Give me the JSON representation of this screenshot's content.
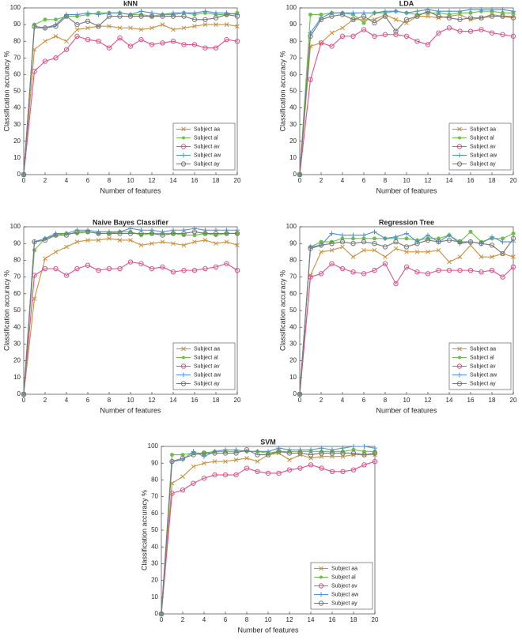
{
  "chart_data": [
    {
      "type": "line",
      "title": "kNN",
      "xlabel": "Number of features",
      "ylabel": "Classification accuracy %",
      "x": [
        0,
        1,
        2,
        3,
        4,
        5,
        6,
        7,
        8,
        9,
        10,
        11,
        12,
        13,
        14,
        15,
        16,
        17,
        18,
        19,
        20
      ],
      "xlim": [
        0,
        20
      ],
      "ylim": [
        0,
        100
      ],
      "xticks": [
        0,
        2,
        4,
        6,
        8,
        10,
        12,
        14,
        16,
        18,
        20
      ],
      "yticks": [
        0,
        10,
        20,
        30,
        40,
        50,
        60,
        70,
        80,
        90,
        100
      ],
      "legend": "lower right",
      "series": [
        {
          "name": "Subject aa",
          "color": "#c99040",
          "values": [
            0,
            75,
            80,
            83,
            80,
            87,
            88,
            89,
            89,
            88,
            88,
            87,
            88,
            90,
            87,
            88,
            89,
            90,
            90,
            90,
            89
          ]
        },
        {
          "name": "Subject al",
          "color": "#6cc04a",
          "values": [
            0,
            90,
            93,
            93,
            95,
            95,
            96,
            97,
            97,
            97,
            96,
            96,
            95,
            96,
            96,
            97,
            96,
            97,
            96,
            96,
            97
          ]
        },
        {
          "name": "Subject av",
          "color": "#e0508a",
          "values": [
            0,
            62,
            68,
            70,
            75,
            83,
            81,
            80,
            76,
            82,
            77,
            81,
            78,
            79,
            80,
            78,
            78,
            76,
            76,
            81,
            80
          ]
        },
        {
          "name": "Subject aw",
          "color": "#4a90d9",
          "values": [
            0,
            88,
            88,
            90,
            96,
            96,
            97,
            96,
            97,
            97,
            96,
            98,
            97,
            96,
            97,
            97,
            97,
            98,
            97,
            97,
            96
          ]
        },
        {
          "name": "Subject ay",
          "color": "#777777",
          "values": [
            0,
            89,
            88,
            89,
            95,
            90,
            92,
            89,
            95,
            95,
            95,
            95,
            95,
            95,
            95,
            95,
            93,
            93,
            94,
            96,
            95
          ]
        }
      ]
    },
    {
      "type": "line",
      "title": "LDA",
      "xlabel": "Number of features",
      "ylabel": "Classification accuracy %",
      "x": [
        0,
        1,
        2,
        3,
        4,
        5,
        6,
        7,
        8,
        9,
        10,
        11,
        12,
        13,
        14,
        15,
        16,
        17,
        18,
        19,
        20
      ],
      "xlim": [
        0,
        20
      ],
      "ylim": [
        0,
        100
      ],
      "xticks": [
        0,
        2,
        4,
        6,
        8,
        10,
        12,
        14,
        16,
        18,
        20
      ],
      "yticks": [
        0,
        10,
        20,
        30,
        40,
        50,
        60,
        70,
        80,
        90,
        100
      ],
      "legend": "lower right",
      "series": [
        {
          "name": "Subject aa",
          "color": "#c99040",
          "values": [
            0,
            77,
            79,
            85,
            88,
            93,
            93,
            93,
            96,
            93,
            91,
            95,
            95,
            94,
            95,
            96,
            93,
            94,
            96,
            95,
            95
          ]
        },
        {
          "name": "Subject al",
          "color": "#6cc04a",
          "values": [
            0,
            96,
            96,
            97,
            97,
            96,
            91,
            97,
            97,
            98,
            97,
            96,
            97,
            97,
            96,
            97,
            97,
            98,
            98,
            97,
            97
          ]
        },
        {
          "name": "Subject av",
          "color": "#e0508a",
          "values": [
            0,
            57,
            79,
            77,
            83,
            83,
            87,
            83,
            84,
            84,
            83,
            80,
            78,
            85,
            88,
            86,
            86,
            87,
            85,
            84,
            83
          ]
        },
        {
          "name": "Subject aw",
          "color": "#4a90d9",
          "values": [
            0,
            85,
            94,
            97,
            97,
            97,
            97,
            97,
            98,
            98,
            97,
            98,
            99,
            98,
            98,
            98,
            99,
            99,
            99,
            99,
            98
          ]
        },
        {
          "name": "Subject ay",
          "color": "#777777",
          "values": [
            0,
            83,
            93,
            95,
            96,
            93,
            95,
            91,
            95,
            86,
            93,
            95,
            98,
            95,
            94,
            93,
            94,
            94,
            95,
            95,
            94
          ]
        }
      ]
    },
    {
      "type": "line",
      "title": "Naive Bayes Classifier",
      "xlabel": "Number of features",
      "ylabel": "Classification accuracy %",
      "x": [
        0,
        1,
        2,
        3,
        4,
        5,
        6,
        7,
        8,
        9,
        10,
        11,
        12,
        13,
        14,
        15,
        16,
        17,
        18,
        19,
        20
      ],
      "xlim": [
        0,
        20
      ],
      "ylim": [
        0,
        100
      ],
      "xticks": [
        0,
        2,
        4,
        6,
        8,
        10,
        12,
        14,
        16,
        18,
        20
      ],
      "yticks": [
        0,
        10,
        20,
        30,
        40,
        50,
        60,
        70,
        80,
        90,
        100
      ],
      "legend": "lower right",
      "series": [
        {
          "name": "Subject aa",
          "color": "#c99040",
          "values": [
            0,
            57,
            81,
            85,
            88,
            91,
            92,
            92,
            93,
            92,
            92,
            89,
            90,
            91,
            90,
            89,
            91,
            92,
            90,
            91,
            89
          ]
        },
        {
          "name": "Subject al",
          "color": "#6cc04a",
          "values": [
            0,
            86,
            93,
            95,
            96,
            96,
            97,
            96,
            96,
            97,
            97,
            95,
            96,
            96,
            96,
            95,
            95,
            96,
            95,
            96,
            96
          ]
        },
        {
          "name": "Subject av",
          "color": "#e0508a",
          "values": [
            0,
            71,
            75,
            75,
            71,
            75,
            77,
            74,
            75,
            75,
            79,
            78,
            75,
            76,
            73,
            74,
            74,
            75,
            76,
            78,
            74
          ]
        },
        {
          "name": "Subject aw",
          "color": "#4a90d9",
          "values": [
            0,
            91,
            93,
            96,
            96,
            98,
            98,
            97,
            97,
            97,
            99,
            98,
            98,
            97,
            98,
            98,
            99,
            98,
            98,
            98,
            98
          ]
        },
        {
          "name": "Subject ay",
          "color": "#777777",
          "values": [
            0,
            91,
            92,
            95,
            95,
            97,
            97,
            96,
            96,
            96,
            96,
            96,
            96,
            95,
            96,
            96,
            97,
            96,
            96,
            96,
            96
          ]
        }
      ]
    },
    {
      "type": "line",
      "title": "Regression Tree",
      "xlabel": "Number of features",
      "ylabel": "Classification accuracy %",
      "x": [
        0,
        1,
        2,
        3,
        4,
        5,
        6,
        7,
        8,
        9,
        10,
        11,
        12,
        13,
        14,
        15,
        16,
        17,
        18,
        19,
        20
      ],
      "xlim": [
        0,
        20
      ],
      "ylim": [
        0,
        100
      ],
      "xticks": [
        0,
        2,
        4,
        6,
        8,
        10,
        12,
        14,
        16,
        18,
        20
      ],
      "yticks": [
        0,
        10,
        20,
        30,
        40,
        50,
        60,
        70,
        80,
        90,
        100
      ],
      "legend": "lower right",
      "series": [
        {
          "name": "Subject aa",
          "color": "#c99040",
          "values": [
            0,
            71,
            85,
            86,
            88,
            82,
            86,
            86,
            82,
            87,
            85,
            85,
            85,
            86,
            79,
            82,
            89,
            82,
            82,
            84,
            82
          ]
        },
        {
          "name": "Subject al",
          "color": "#6cc04a",
          "values": [
            0,
            88,
            91,
            91,
            93,
            93,
            93,
            93,
            93,
            93,
            93,
            92,
            93,
            93,
            95,
            91,
            97,
            91,
            93,
            93,
            96
          ]
        },
        {
          "name": "Subject av",
          "color": "#e0508a",
          "values": [
            0,
            70,
            72,
            78,
            75,
            73,
            72,
            74,
            78,
            66,
            76,
            73,
            72,
            74,
            74,
            74,
            74,
            73,
            74,
            70,
            76
          ]
        },
        {
          "name": "Subject aw",
          "color": "#4a90d9",
          "values": [
            0,
            88,
            89,
            96,
            95,
            95,
            95,
            97,
            93,
            94,
            96,
            91,
            95,
            91,
            95,
            90,
            91,
            90,
            94,
            91,
            91
          ]
        },
        {
          "name": "Subject ay",
          "color": "#777777",
          "values": [
            0,
            87,
            89,
            90,
            91,
            90,
            91,
            90,
            88,
            91,
            88,
            90,
            92,
            91,
            92,
            91,
            91,
            90,
            89,
            84,
            93
          ]
        }
      ]
    },
    {
      "type": "line",
      "title": "SVM",
      "xlabel": "Number of features",
      "ylabel": "Classification accuracy %",
      "x": [
        0,
        1,
        2,
        3,
        4,
        5,
        6,
        7,
        8,
        9,
        10,
        11,
        12,
        13,
        14,
        15,
        16,
        17,
        18,
        19,
        20
      ],
      "xlim": [
        0,
        20
      ],
      "ylim": [
        0,
        100
      ],
      "xticks": [
        0,
        2,
        4,
        6,
        8,
        10,
        12,
        14,
        16,
        18,
        20
      ],
      "yticks": [
        0,
        10,
        20,
        30,
        40,
        50,
        60,
        70,
        80,
        90,
        100
      ],
      "legend": "lower right",
      "series": [
        {
          "name": "Subject aa",
          "color": "#c99040",
          "values": [
            0,
            78,
            82,
            88,
            90,
            91,
            91,
            92,
            93,
            91,
            95,
            96,
            92,
            95,
            93,
            94,
            94,
            94,
            95,
            95,
            95
          ]
        },
        {
          "name": "Subject al",
          "color": "#6cc04a",
          "values": [
            0,
            95,
            95,
            96,
            96,
            97,
            97,
            97,
            97,
            97,
            96,
            97,
            97,
            97,
            97,
            97,
            97,
            97,
            98,
            97,
            97
          ]
        },
        {
          "name": "Subject av",
          "color": "#e0508a",
          "values": [
            0,
            72,
            74,
            78,
            81,
            83,
            83,
            83,
            87,
            85,
            84,
            84,
            86,
            87,
            89,
            87,
            85,
            85,
            86,
            89,
            91
          ]
        },
        {
          "name": "Subject aw",
          "color": "#4a90d9",
          "values": [
            0,
            91,
            92,
            97,
            94,
            97,
            98,
            98,
            97,
            97,
            97,
            99,
            98,
            98,
            98,
            99,
            98,
            99,
            100,
            100,
            99
          ]
        },
        {
          "name": "Subject ay",
          "color": "#777777",
          "values": [
            0,
            91,
            93,
            95,
            96,
            96,
            96,
            96,
            98,
            95,
            95,
            97,
            96,
            96,
            95,
            96,
            96,
            96,
            96,
            95,
            96
          ]
        }
      ]
    }
  ]
}
